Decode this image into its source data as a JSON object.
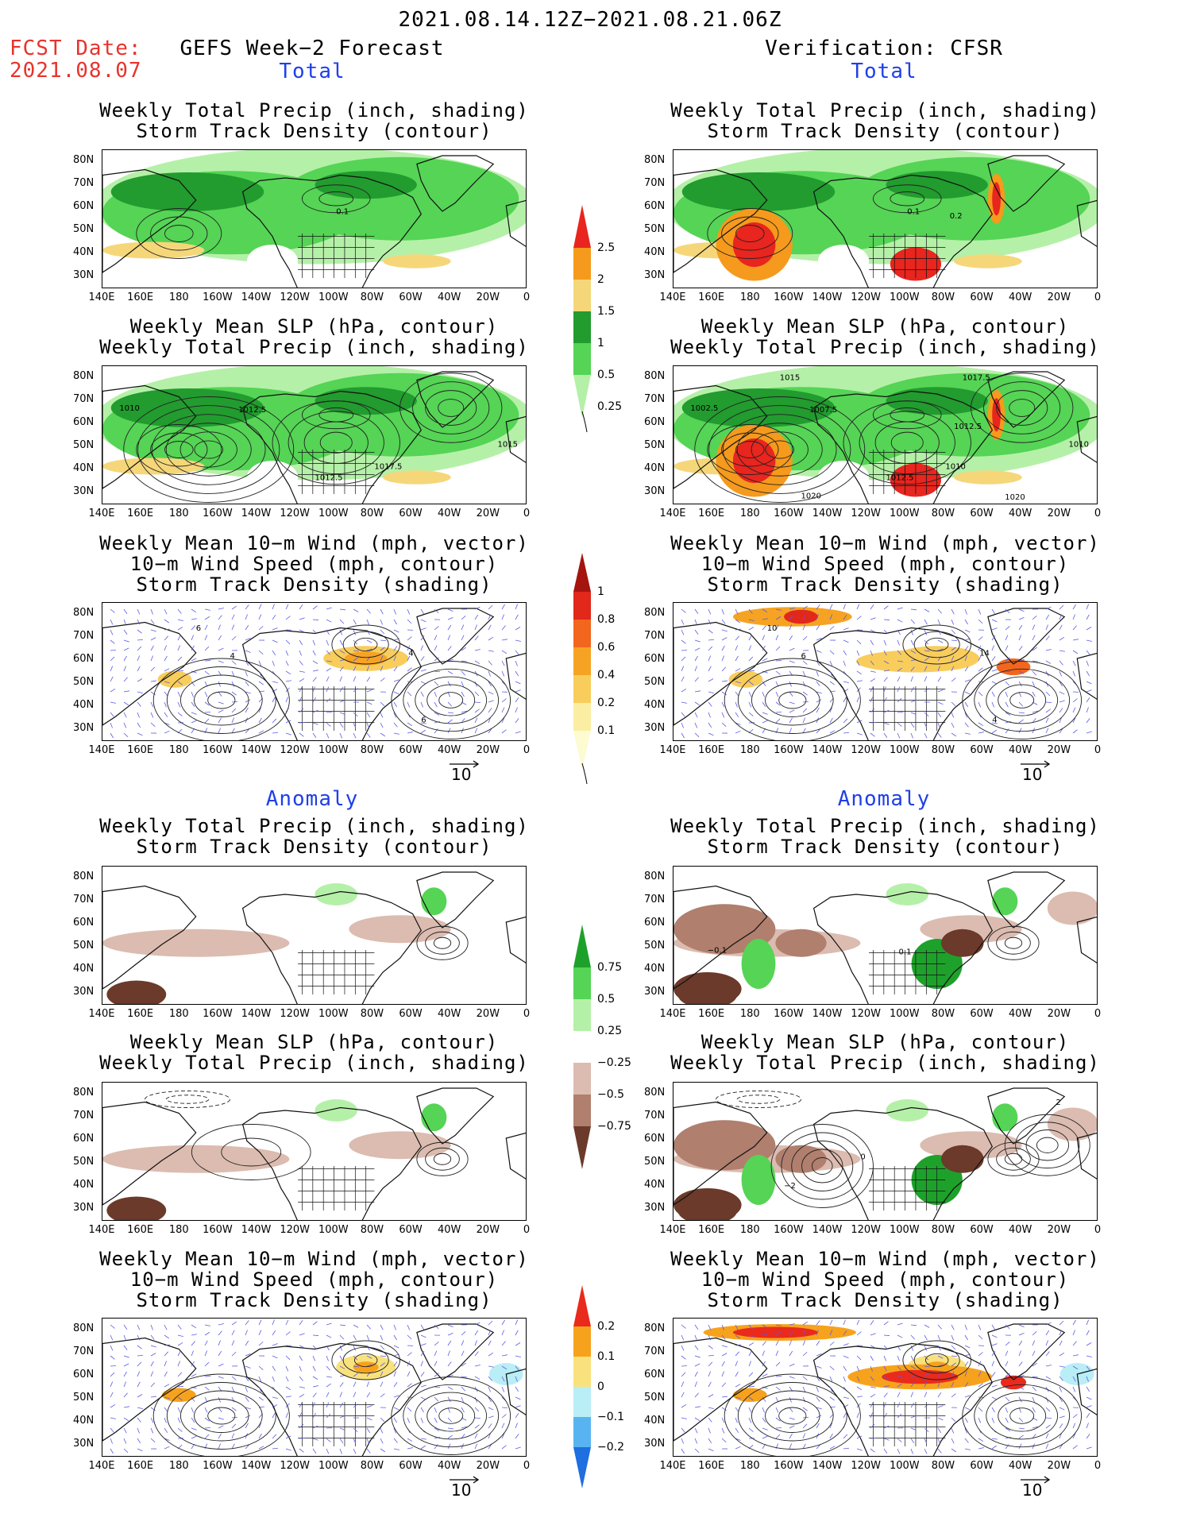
{
  "header": {
    "date_range": "2021.08.14.12Z−2021.08.21.06Z",
    "fcst_label": "FCST Date:",
    "fcst_date": "2021.08.07",
    "left_title": "GEFS Week−2 Forecast",
    "right_title": "Verification: CFSR"
  },
  "sections": {
    "total": "Total",
    "anomaly": "Anomaly"
  },
  "panel_titles": {
    "precip_storm": [
      "Weekly Total Precip (inch, shading)",
      "Storm Track Density (contour)"
    ],
    "slp_precip": [
      "Weekly Mean SLP (hPa, contour)",
      "Weekly Total Precip (inch, shading)"
    ],
    "wind": [
      "Weekly Mean 10−m Wind (mph, vector)",
      "10−m Wind Speed (mph, contour)",
      "Storm Track Density (shading)"
    ]
  },
  "axes": {
    "lat_labels": [
      "80N",
      "70N",
      "60N",
      "50N",
      "40N",
      "30N"
    ],
    "lon_labels": [
      "140E",
      "160E",
      "180",
      "160W",
      "140W",
      "120W",
      "100W",
      "80W",
      "60W",
      "40W",
      "20W",
      "0"
    ]
  },
  "vector_ref": "10",
  "colorbars": {
    "precip_total": {
      "labels": [
        "2.5",
        "2",
        "1.5",
        "1",
        "0.5",
        "0.25"
      ],
      "colors": [
        "#e8251e",
        "#f59a1c",
        "#f5d77a",
        "#229b2f",
        "#55d455",
        "#b5f0a8"
      ]
    },
    "storm_total": {
      "labels": [
        "1",
        "0.8",
        "0.6",
        "0.4",
        "0.2",
        "0.1"
      ],
      "colors": [
        "#a5140f",
        "#e2271b",
        "#f2661e",
        "#f6a323",
        "#f8cd5c",
        "#fbeea3",
        "#fdfbd2"
      ]
    },
    "precip_anom": {
      "labels": [
        "0.75",
        "0.5",
        "0.25",
        "−0.25",
        "−0.5",
        "−0.75"
      ],
      "colors": [
        "#1ea12b",
        "#55d455",
        "#b5f0a8",
        "#ffffff",
        "#dcbcb0",
        "#b07f6e",
        "#6b3a2a"
      ]
    },
    "storm_anom": {
      "labels": [
        "0.2",
        "0.1",
        "0",
        "−0.1",
        "−0.2"
      ],
      "colors": [
        "#ea2a1c",
        "#f7a21d",
        "#f9e27d",
        "#b9eef6",
        "#58b4f0",
        "#1e6fe0"
      ]
    }
  },
  "contour_labels": {
    "fcst_precip_storm": [
      "0.1"
    ],
    "fcst_slp": [
      "1010",
      "1012.5",
      "1015",
      "1012.5",
      "1017.5"
    ],
    "verif_precip_storm": [
      "0.1",
      "0.2"
    ],
    "verif_slp": [
      "1002.5",
      "1007.5",
      "1010",
      "1012.5",
      "1010",
      "1015",
      "1017.5",
      "1012.5",
      "1020",
      "1020"
    ],
    "fcst_wind": [
      "4",
      "6",
      "4",
      "6"
    ],
    "verif_wind": [
      "6",
      "10",
      "14",
      "4"
    ],
    "verif_anom_precip_storm": [
      "−0.1",
      "0.1"
    ],
    "verif_anom_slp": [
      "2",
      "−2",
      "0"
    ]
  }
}
